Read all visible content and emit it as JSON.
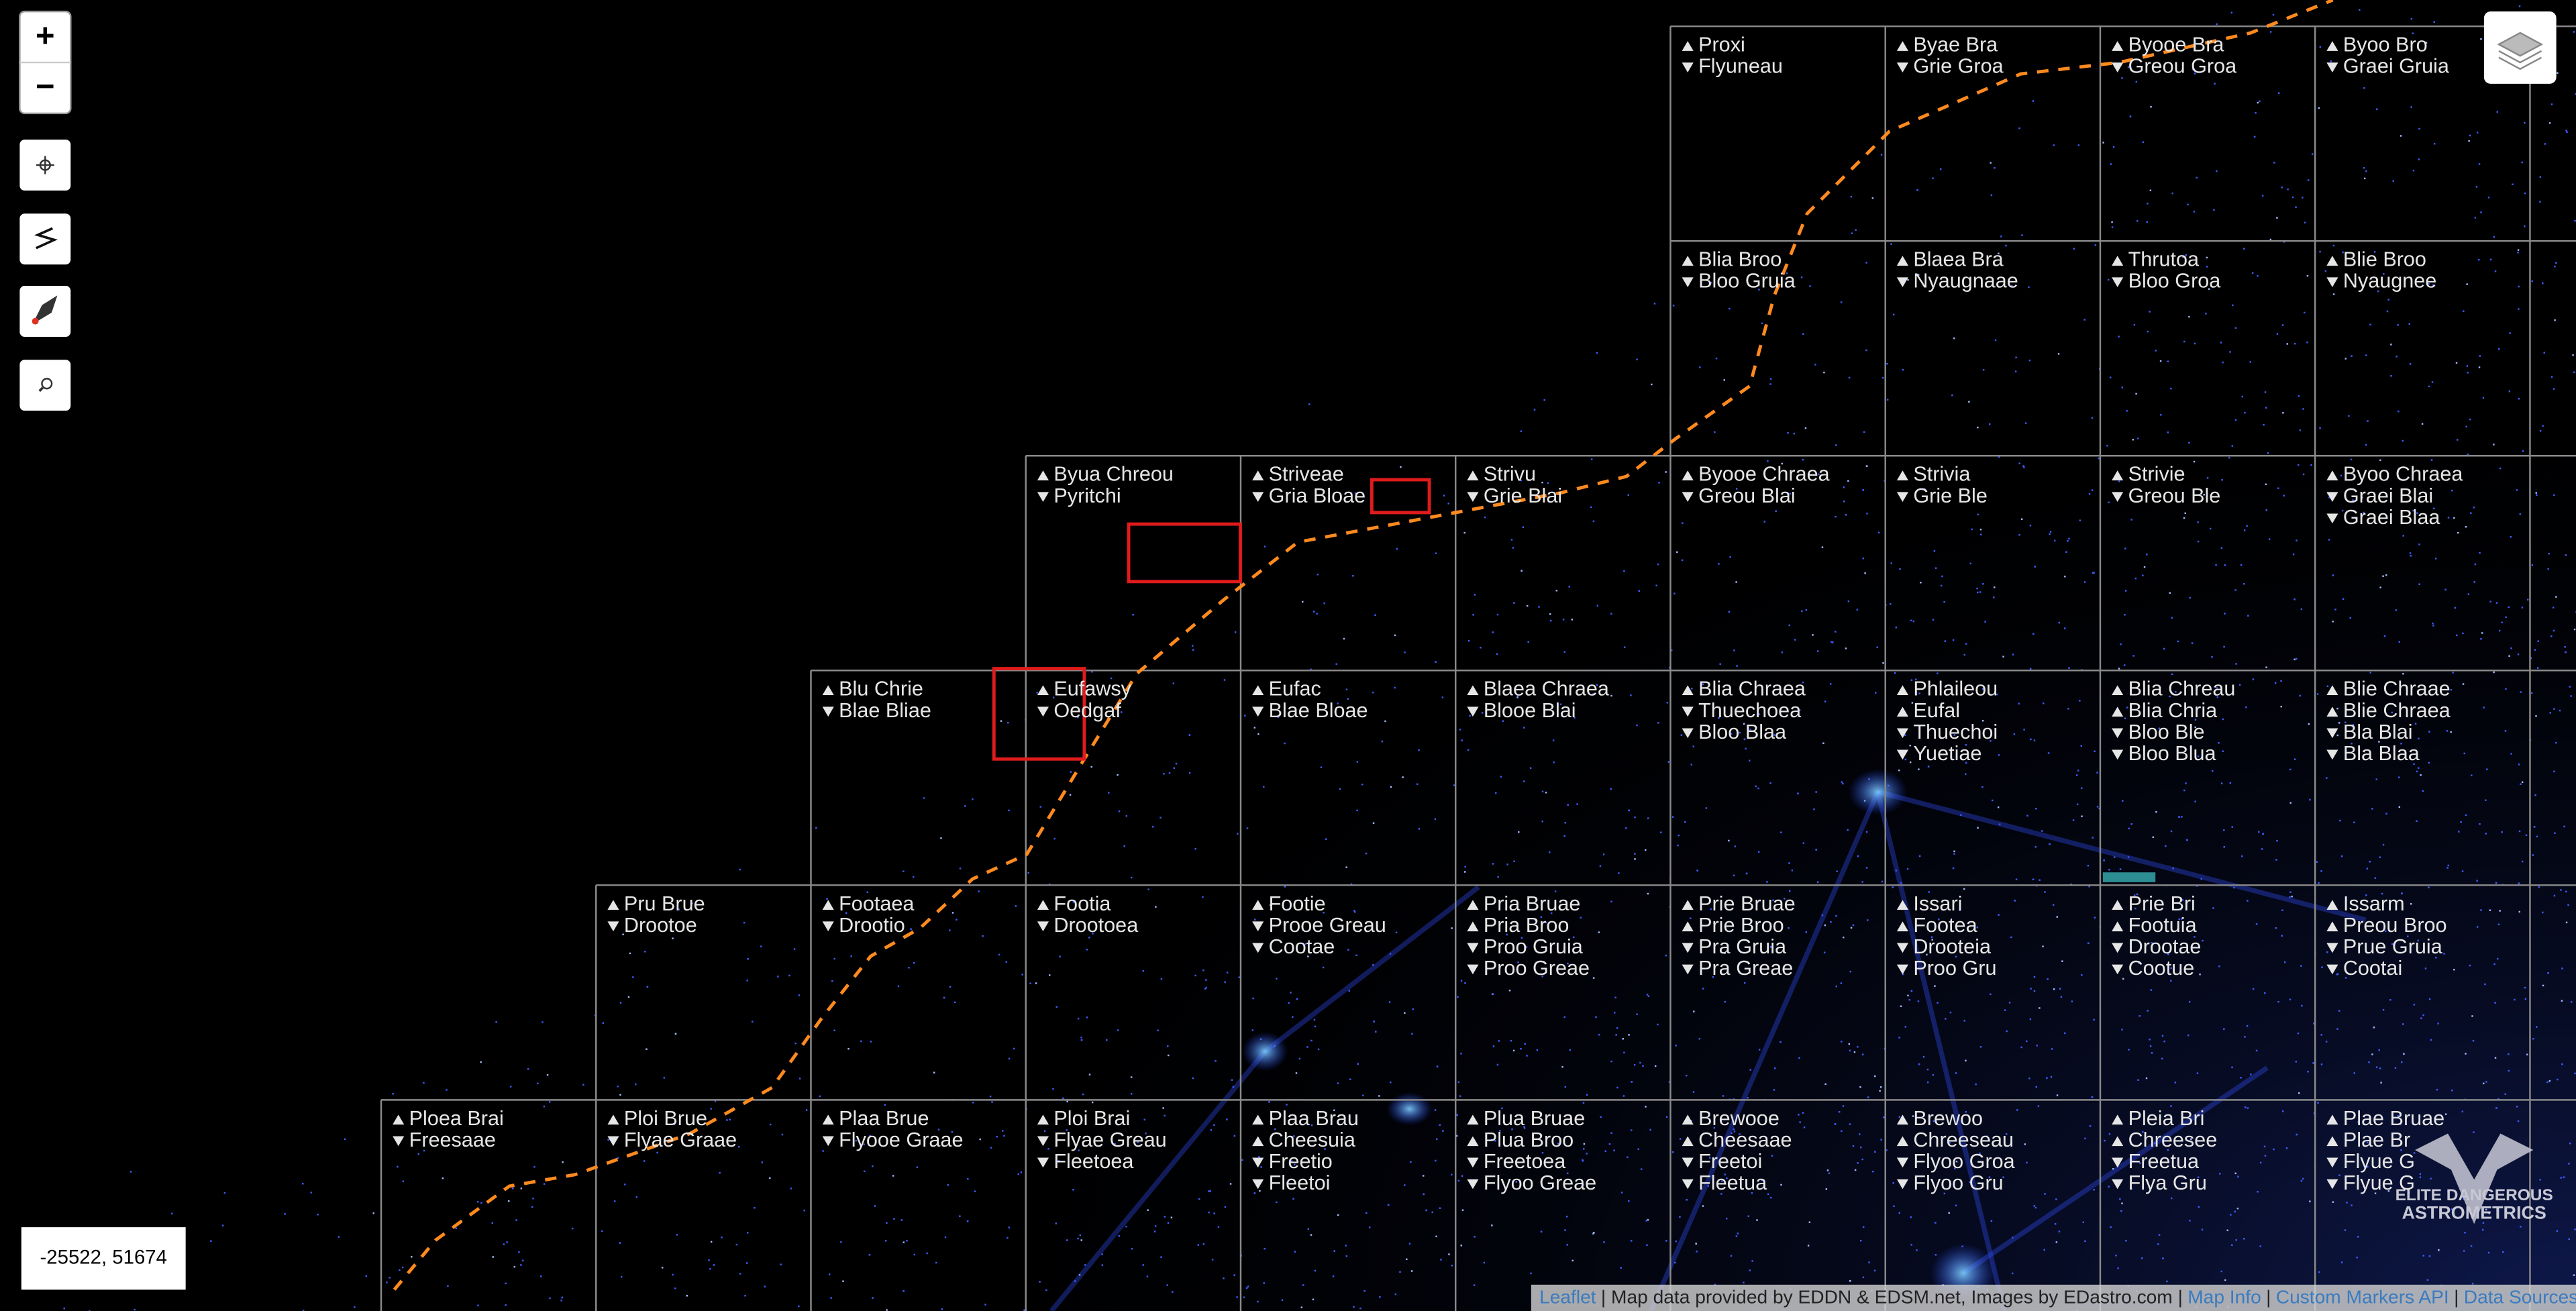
{
  "cells": [
    {
      "lines": [
        "Proxi",
        "Flyuneau"
      ]
    },
    {
      "lines": [
        "Byae Bra",
        "Grie Groa"
      ]
    },
    {
      "lines": [
        "Byooe Bra",
        "Greou Groa"
      ]
    },
    {
      "lines": [
        "Byoo Bro",
        "Graei Gruia"
      ]
    },
    {
      "lines": [
        "Blia Broo",
        "Bloo Gruia"
      ]
    },
    {
      "lines": [
        "Blaea Bra",
        "Nyaugnaae"
      ]
    },
    {
      "lines": [
        "Thrutoa",
        "Bloo Groa"
      ]
    },
    {
      "lines": [
        "Blie Broo",
        "Nyaugnee"
      ]
    },
    {
      "lines": [
        "Byua Chreou",
        "Pyritchi"
      ]
    },
    {
      "lines": [
        "Striveae",
        "Gria Bloae"
      ]
    },
    {
      "lines": [
        "Strivu",
        "Grie Blai"
      ]
    },
    {
      "lines": [
        "Byooe Chraea",
        "Greou Blai"
      ]
    },
    {
      "lines": [
        "Strivia",
        "Grie Ble"
      ]
    },
    {
      "lines": [
        "Strivie",
        "Greou Ble"
      ]
    },
    {
      "lines": [
        "Byoo Chraea",
        "Graei Blai",
        "Graei Blaa"
      ]
    },
    {
      "lines": [
        "Blu Chrie",
        "Blae Bliae"
      ]
    },
    {
      "lines": [
        "Eufawsy",
        "Oedgaf"
      ]
    },
    {
      "lines": [
        "Eufac",
        "Blae Bloae"
      ]
    },
    {
      "lines": [
        "Blaea Chraea",
        "Blooe Blai"
      ]
    },
    {
      "lines": [
        "Blia Chraea",
        "Thuechoea",
        "Bloo Blaa"
      ]
    },
    {
      "lines": [
        "Phlaileou",
        "Eufal",
        "Thuechoi",
        "Yuetiae"
      ]
    },
    {
      "lines": [
        "Blia Chreau",
        "Blia Chria",
        "Bloo Ble",
        "Bloo Blua"
      ]
    },
    {
      "lines": [
        "Blie Chraae",
        "Blie Chraea",
        "Bla Blai",
        "Bla Blaa"
      ]
    },
    {
      "lines": [
        "Pru Brue",
        "Drootoe"
      ]
    },
    {
      "lines": [
        "Footaea",
        "Drootio"
      ]
    },
    {
      "lines": [
        "Footia",
        "Drootoea"
      ]
    },
    {
      "lines": [
        "Footie",
        "Prooe Greau",
        "Cootae"
      ]
    },
    {
      "lines": [
        "Pria Bruae",
        "Pria Broo",
        "Proo Gruia",
        "Proo Greae"
      ]
    },
    {
      "lines": [
        "Prie Bruae",
        "Prie Broo",
        "Pra Gruia",
        "Pra Greae"
      ]
    },
    {
      "lines": [
        "Issari",
        "Footea",
        "Drooteia",
        "Proo Gru"
      ]
    },
    {
      "lines": [
        "Prie Bri",
        "Footuia",
        "Drootae",
        "Cootue"
      ]
    },
    {
      "lines": [
        "Issarm",
        "Preou Broo",
        "Prue Gruia",
        "Cootai"
      ]
    },
    {
      "lines": [
        "Ploea Brai",
        "Freesaae"
      ]
    },
    {
      "lines": [
        "Ploi Brue",
        "Flyae Graae"
      ]
    },
    {
      "lines": [
        "Plaa Brue",
        "Flyooe Graae"
      ]
    },
    {
      "lines": [
        "Ploi Brai",
        "Flyae Greau",
        "Fleetoea"
      ]
    },
    {
      "lines": [
        "Plaa Brau",
        "Cheesuia",
        "Freetio",
        "Fleetoi"
      ]
    },
    {
      "lines": [
        "Plua Bruae",
        "Plua Broo",
        "Freetoea",
        "Flyoo Greae"
      ]
    },
    {
      "lines": [
        "Brewooe",
        "Cheesaae",
        "Freetoi",
        "Fleetua"
      ]
    },
    {
      "lines": [
        "Brewoo",
        "Chreeseau",
        "Flyoo Groa",
        "Flyoo Gru"
      ]
    },
    {
      "lines": [
        "Pleia Bri",
        "Chreesee",
        "Freetua",
        "Flya Gru"
      ]
    },
    {
      "lines": [
        "Plae Bruae",
        "Plae Br",
        "Flyue G",
        "Flyue G"
      ]
    }
  ],
  "controls": {
    "zoom_in": "+",
    "zoom_out": "−"
  },
  "coordinates": "-25522, 51674",
  "logo": {
    "line1": "ELITE DANGEROUS",
    "line2": "ASTROMETRICS"
  },
  "attribution": {
    "leaflet": "Leaflet",
    "text": "| Map data provided by EDDN & EDSM.net, Images by EDastro.com |",
    "map_info": "Map Info",
    "sep1": "|",
    "custom_markers": "Custom Markers API",
    "sep2": "|",
    "data_sources": "Data Sources"
  }
}
